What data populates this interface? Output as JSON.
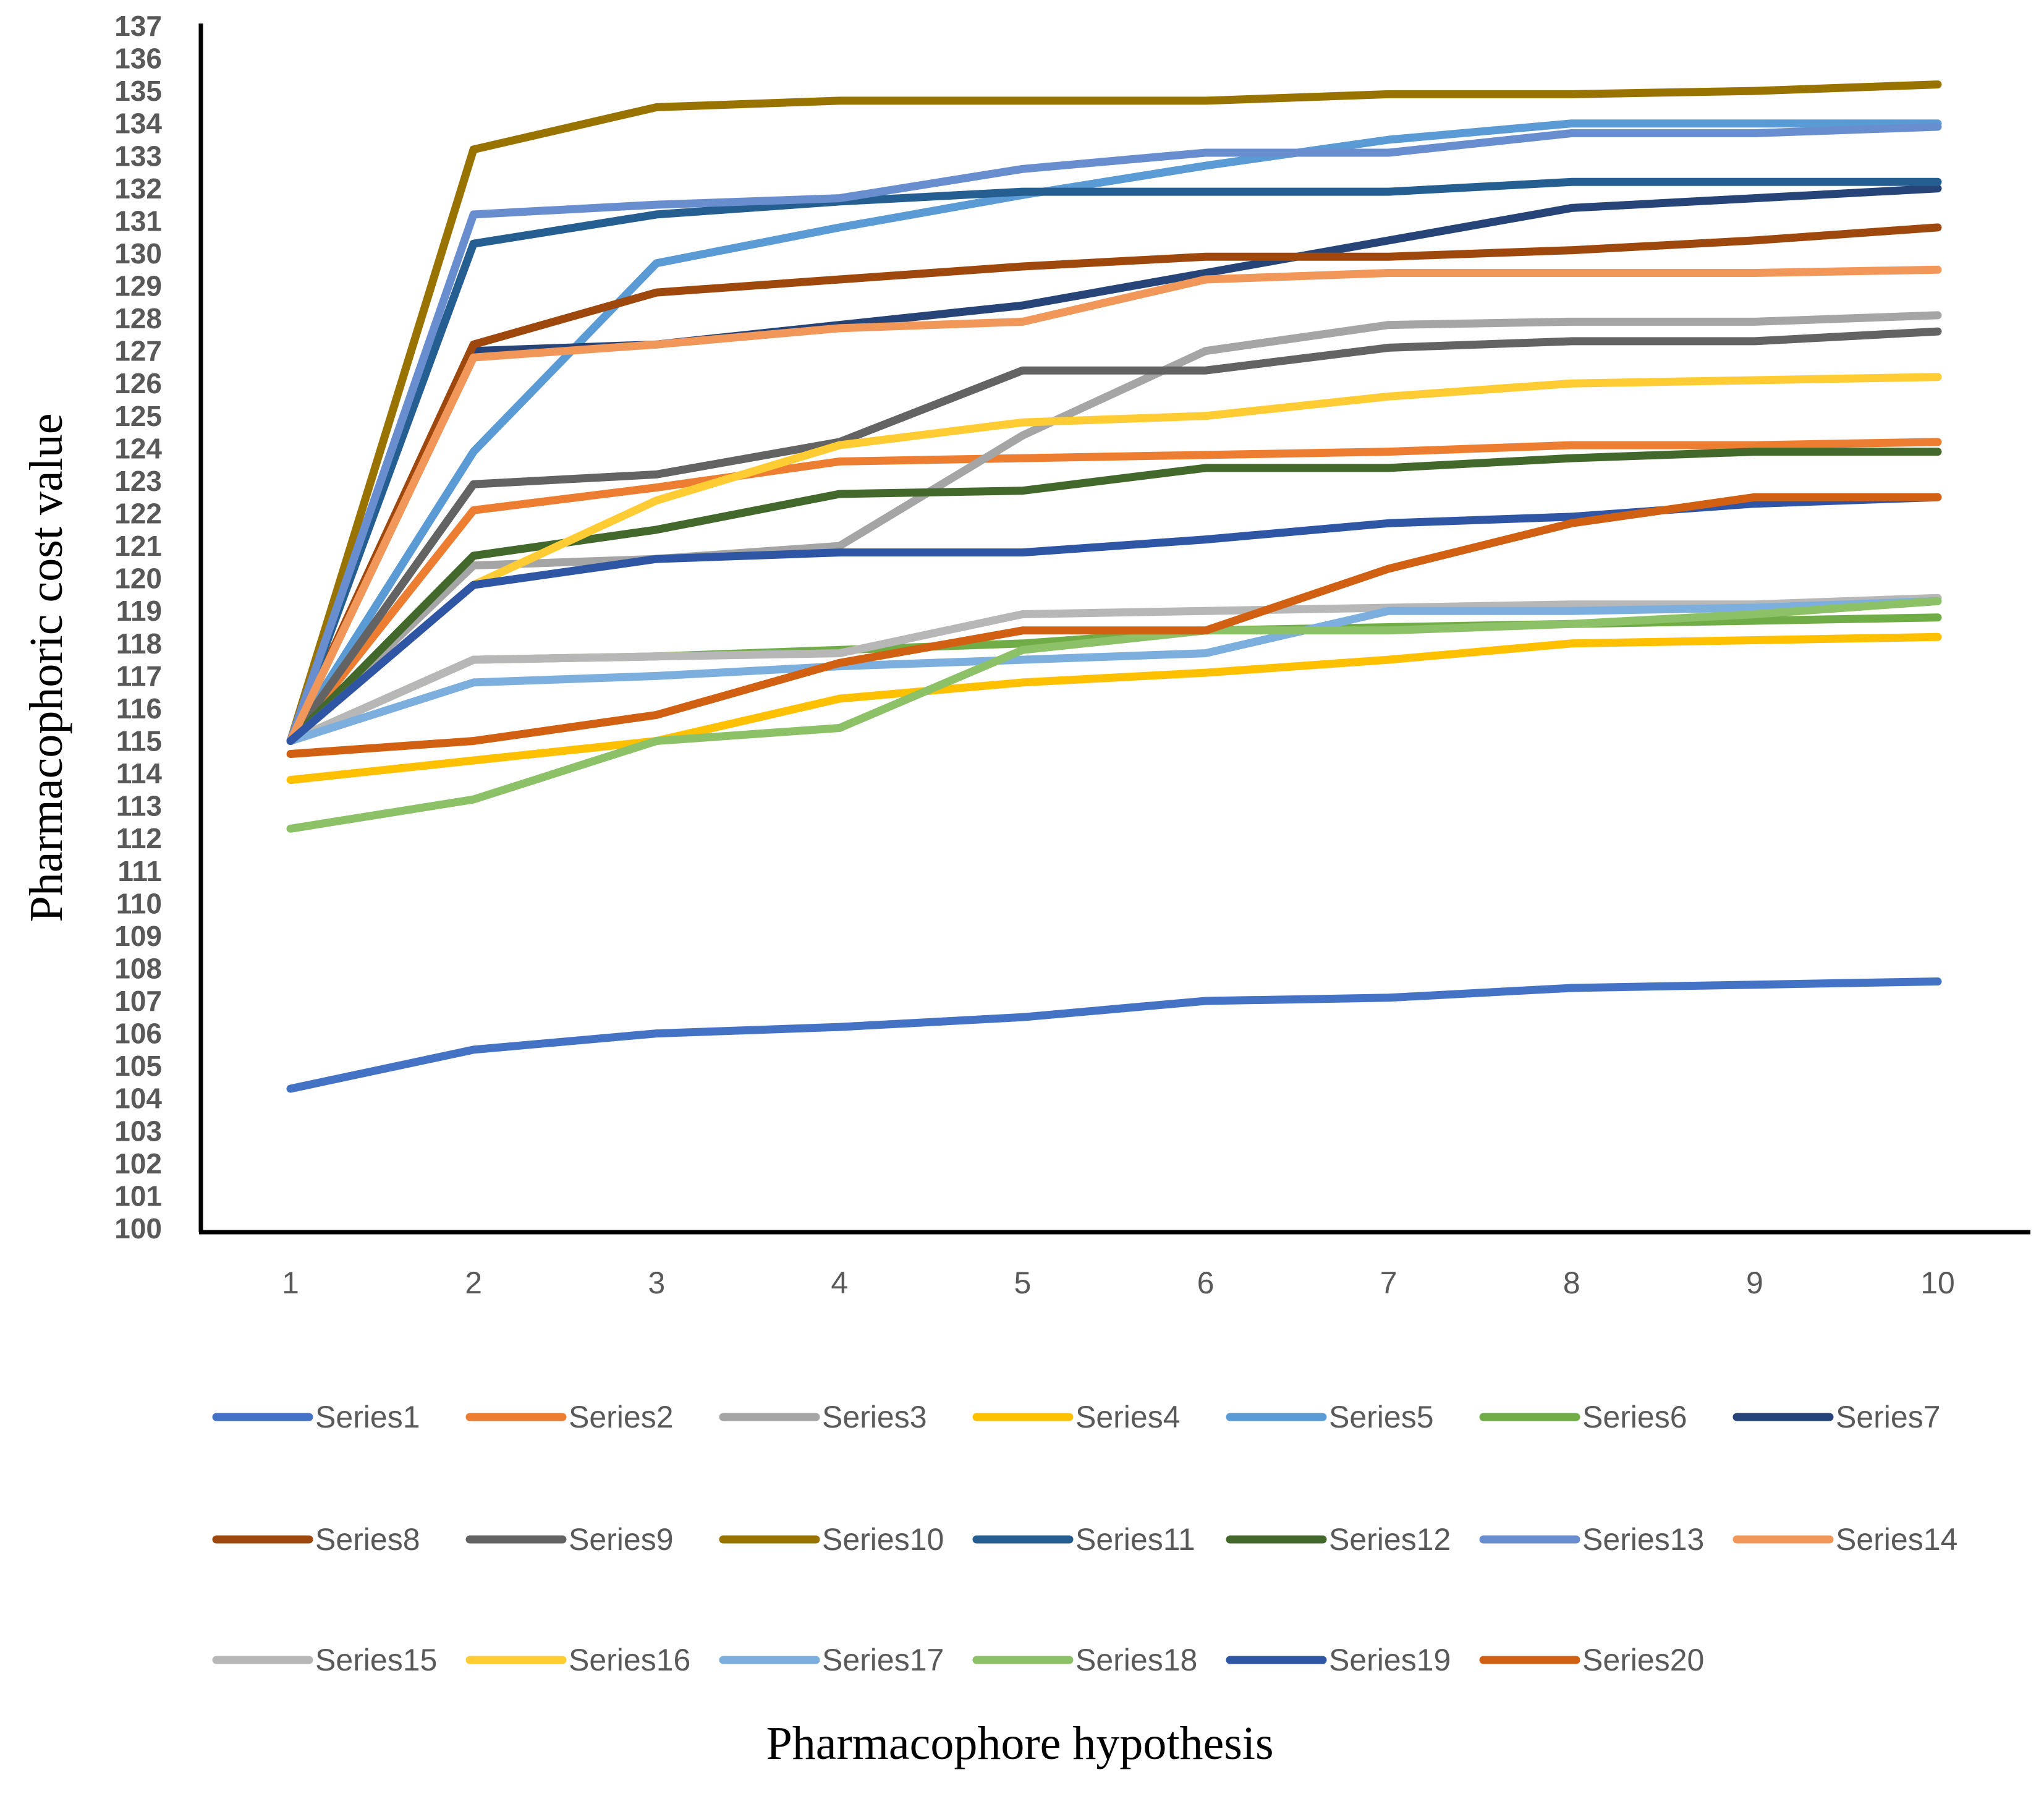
{
  "chart_data": {
    "type": "line",
    "title": "",
    "xlabel": "Pharmacophore hypothesis",
    "ylabel": "Pharmacophoric cost value",
    "ylim": [
      100,
      137
    ],
    "yticks": [
      100,
      101,
      102,
      103,
      104,
      105,
      106,
      107,
      108,
      109,
      110,
      111,
      112,
      113,
      114,
      115,
      116,
      117,
      118,
      119,
      120,
      121,
      122,
      123,
      124,
      125,
      126,
      127,
      128,
      129,
      130,
      131,
      132,
      133,
      134,
      135,
      136,
      137
    ],
    "categories": [
      "1",
      "2",
      "3",
      "4",
      "5",
      "6",
      "7",
      "8",
      "9",
      "10"
    ],
    "legend_position": "bottom",
    "grid": false,
    "series": [
      {
        "name": "Series1",
        "color": "#4472C4",
        "values": [
          104.3,
          105.5,
          106.0,
          106.2,
          106.5,
          107.0,
          107.1,
          107.4,
          107.5,
          107.6
        ]
      },
      {
        "name": "Series2",
        "color": "#ED7D31",
        "values": [
          115.0,
          122.1,
          122.8,
          123.6,
          123.7,
          123.8,
          123.9,
          124.1,
          124.1,
          124.2
        ]
      },
      {
        "name": "Series3",
        "color": "#A5A5A5",
        "values": [
          115.0,
          120.4,
          120.6,
          121.0,
          124.4,
          127.0,
          127.8,
          127.9,
          127.9,
          128.1
        ]
      },
      {
        "name": "Series4",
        "color": "#FFC000",
        "values": [
          113.8,
          114.4,
          115.0,
          116.3,
          116.8,
          117.1,
          117.5,
          118.0,
          118.1,
          118.2
        ]
      },
      {
        "name": "Series5",
        "color": "#5B9BD5",
        "values": [
          115.0,
          123.9,
          129.7,
          130.8,
          131.8,
          132.7,
          133.5,
          134.0,
          134.0,
          134.0
        ]
      },
      {
        "name": "Series6",
        "color": "#70AD47",
        "values": [
          115.0,
          117.5,
          117.6,
          117.8,
          118.0,
          118.4,
          118.5,
          118.6,
          118.7,
          118.8
        ]
      },
      {
        "name": "Series7",
        "color": "#264478",
        "values": [
          115.0,
          127.0,
          127.2,
          127.8,
          128.4,
          129.4,
          130.4,
          131.4,
          131.7,
          132.0
        ]
      },
      {
        "name": "Series8",
        "color": "#9E480E",
        "values": [
          115.0,
          127.2,
          128.8,
          129.2,
          129.6,
          129.9,
          129.9,
          130.1,
          130.4,
          130.8
        ]
      },
      {
        "name": "Series9",
        "color": "#636363",
        "values": [
          115.0,
          122.9,
          123.2,
          124.2,
          126.4,
          126.4,
          127.1,
          127.3,
          127.3,
          127.6
        ]
      },
      {
        "name": "Series10",
        "color": "#997300",
        "values": [
          115.0,
          133.2,
          134.5,
          134.7,
          134.7,
          134.7,
          134.9,
          134.9,
          135.0,
          135.2
        ]
      },
      {
        "name": "Series11",
        "color": "#255E91",
        "values": [
          115.0,
          130.3,
          131.2,
          131.6,
          131.9,
          131.9,
          131.9,
          132.2,
          132.2,
          132.2
        ]
      },
      {
        "name": "Series12",
        "color": "#43682B",
        "values": [
          115.0,
          120.7,
          121.5,
          122.6,
          122.7,
          123.4,
          123.4,
          123.7,
          123.9,
          123.9
        ]
      },
      {
        "name": "Series13",
        "color": "#698ED0",
        "values": [
          115.0,
          131.2,
          131.5,
          131.7,
          132.6,
          133.1,
          133.1,
          133.7,
          133.7,
          133.9
        ]
      },
      {
        "name": "Series14",
        "color": "#F1975A",
        "values": [
          115.0,
          126.8,
          127.2,
          127.7,
          127.9,
          129.2,
          129.4,
          129.4,
          129.4,
          129.5
        ]
      },
      {
        "name": "Series15",
        "color": "#B7B7B7",
        "values": [
          115.0,
          117.5,
          117.6,
          117.7,
          118.9,
          119.0,
          119.1,
          119.2,
          119.2,
          119.4
        ]
      },
      {
        "name": "Series16",
        "color": "#FFCD33",
        "values": [
          115.0,
          119.8,
          122.4,
          124.1,
          124.8,
          125.0,
          125.6,
          126.0,
          126.1,
          126.2
        ]
      },
      {
        "name": "Series17",
        "color": "#7CAFDD",
        "values": [
          115.0,
          116.8,
          117.0,
          117.3,
          117.5,
          117.7,
          119.0,
          119.0,
          119.1,
          119.3
        ]
      },
      {
        "name": "Series18",
        "color": "#8CC168",
        "values": [
          112.3,
          113.2,
          115.0,
          115.4,
          117.8,
          118.4,
          118.4,
          118.6,
          118.9,
          119.3
        ]
      },
      {
        "name": "Series19",
        "color": "#2F55A5",
        "values": [
          115.0,
          119.8,
          120.6,
          120.8,
          120.8,
          121.2,
          121.7,
          121.9,
          122.3,
          122.5
        ]
      },
      {
        "name": "Series20",
        "color": "#D26012",
        "values": [
          114.6,
          115.0,
          115.8,
          117.4,
          118.4,
          118.4,
          120.3,
          121.7,
          122.5,
          122.5
        ]
      }
    ]
  }
}
